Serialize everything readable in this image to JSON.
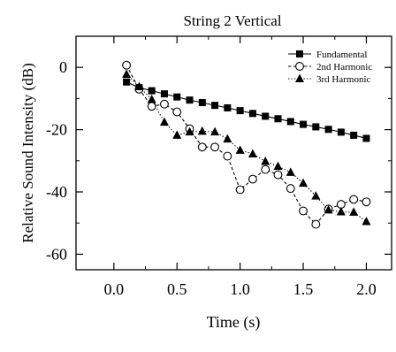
{
  "chart_data": {
    "type": "line",
    "title": "String  2  Vertical",
    "xlabel": "Time  (s)",
    "ylabel": "Relative  Sound  Intensity  (dB)",
    "xlim": [
      -0.3,
      2.2
    ],
    "ylim": [
      -65,
      10
    ],
    "xticks": [
      0.0,
      0.5,
      1.0,
      1.5,
      2.0
    ],
    "xtick_labels": [
      "0.0",
      "0.5",
      "1.0",
      "1.5",
      "2.0"
    ],
    "yticks": [
      0,
      -20,
      -40,
      -60
    ],
    "ytick_labels": [
      "0",
      "-20",
      "-40",
      "-60"
    ],
    "grid": false,
    "legend_position": "top-right",
    "series": [
      {
        "name": "Fundamental",
        "marker": "square-filled",
        "line": "solid",
        "x": [
          0.1,
          0.2,
          0.3,
          0.4,
          0.5,
          0.6,
          0.7,
          0.8,
          0.9,
          1.0,
          1.1,
          1.2,
          1.3,
          1.4,
          1.5,
          1.6,
          1.7,
          1.8,
          1.9,
          2.0
        ],
        "values": [
          -4.7,
          -6.5,
          -7.5,
          -8.5,
          -9.5,
          -10.5,
          -11.3,
          -12.2,
          -13.0,
          -13.9,
          -14.8,
          -15.7,
          -16.5,
          -17.4,
          -18.3,
          -19.1,
          -19.9,
          -20.8,
          -21.8,
          -22.8
        ]
      },
      {
        "name": "2nd Harmonic",
        "marker": "circle-open",
        "line": "dashed",
        "x": [
          0.1,
          0.2,
          0.3,
          0.4,
          0.5,
          0.6,
          0.7,
          0.8,
          0.9,
          1.0,
          1.1,
          1.2,
          1.3,
          1.4,
          1.5,
          1.6,
          1.7,
          1.8,
          1.9,
          2.0
        ],
        "values": [
          0.7,
          -7.0,
          -12.5,
          -11.8,
          -14.3,
          -19.7,
          -25.6,
          -25.6,
          -28.5,
          -39.3,
          -35.9,
          -32.8,
          -34.5,
          -38.9,
          -46.1,
          -50.4,
          -45.5,
          -44.0,
          -42.4,
          -43.2
        ]
      },
      {
        "name": "3rd Harmonic",
        "marker": "triangle-filled",
        "line": "dotted",
        "x": [
          0.1,
          0.2,
          0.3,
          0.4,
          0.5,
          0.6,
          0.7,
          0.8,
          0.9,
          1.0,
          1.1,
          1.2,
          1.3,
          1.4,
          1.5,
          1.6,
          1.7,
          1.8,
          1.9,
          2.0
        ],
        "values": [
          -2.2,
          -6.2,
          -10.3,
          -17.6,
          -21.8,
          -20.7,
          -20.5,
          -20.7,
          -23.0,
          -26.6,
          -27.8,
          -30.2,
          -31.8,
          -33.7,
          -37.2,
          -41.3,
          -45.8,
          -46.4,
          -46.5,
          -49.5
        ]
      }
    ]
  }
}
